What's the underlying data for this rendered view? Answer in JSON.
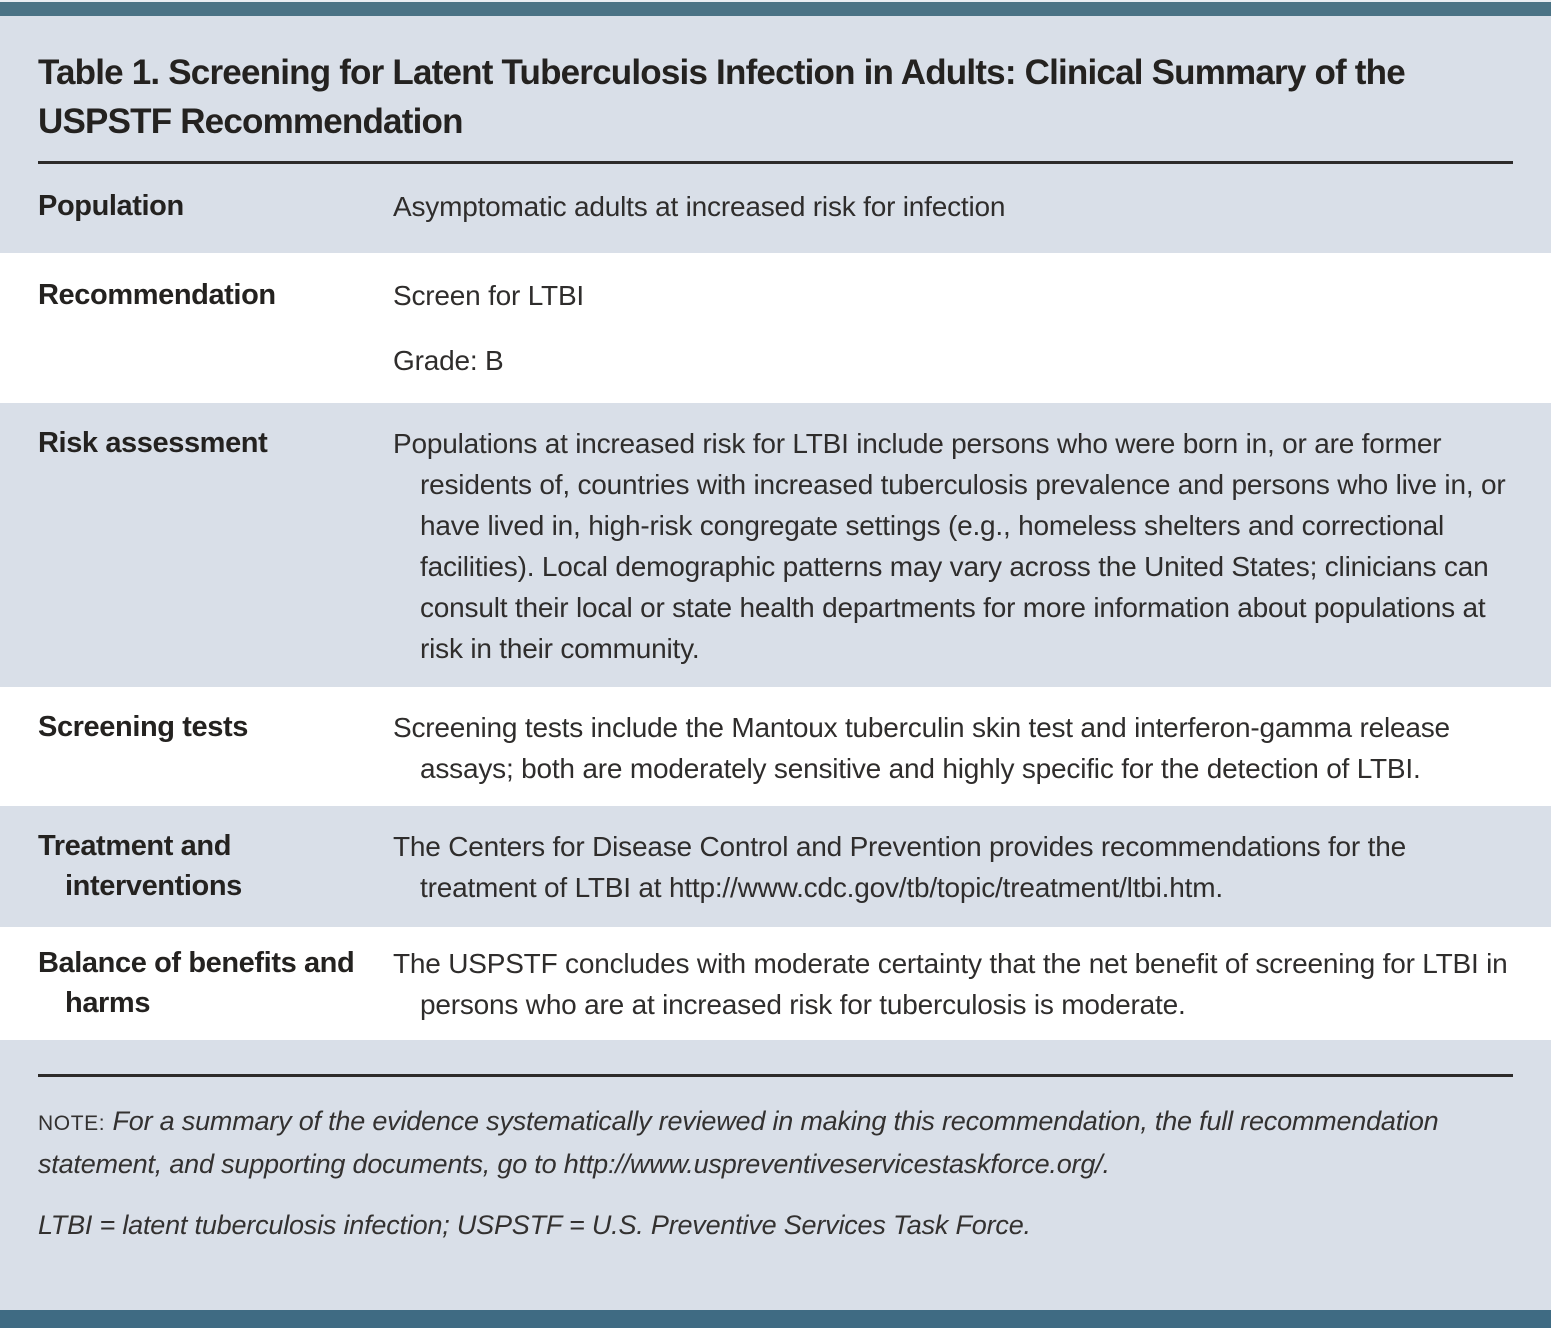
{
  "title": "Table 1. Screening for Latent Tuberculosis Infection in Adults: Clinical Summary of the USPSTF Recommendation",
  "rows": [
    {
      "label": "Population",
      "paragraphs": [
        "Asymptomatic adults at increased risk for infection"
      ]
    },
    {
      "label": "Recommendation",
      "paragraphs": [
        "Screen for LTBI",
        "Grade: B"
      ]
    },
    {
      "label": "Risk assessment",
      "paragraphs": [
        "Populations at increased risk for LTBI include persons who were born in, or are former residents of, countries with increased tuberculosis prevalence and persons who live in, or have lived in, high-risk congregate settings (e.g., homeless shelters and correctional facilities). Local demographic patterns may vary across the United States; clinicians can consult their local or state health departments for more information about populations at risk in their community."
      ]
    },
    {
      "label": "Screening tests",
      "paragraphs": [
        "Screening tests include the Mantoux tuberculin skin test and interferon-gamma release assays; both are moderately sensitive and highly specific for the detection of LTBI."
      ]
    },
    {
      "label": "Treatment and interventions",
      "paragraphs": [
        "The Centers for Disease Control and Prevention provides recommendations for the treatment of LTBI at http://www.cdc.gov/tb/topic/treatment/ltbi.htm."
      ]
    },
    {
      "label": "Balance of benefits and harms",
      "paragraphs": [
        "The USPSTF concludes with moderate certainty that the net benefit of screening for LTBI in persons who are at increased risk for tuberculosis is moderate."
      ]
    }
  ],
  "footer": {
    "note_label": "NOTE:",
    "note_text": "For a summary of the evidence systematically reviewed in making this recommendation, the full recommendation statement, and supporting documents, go to http://www.uspreventiveservicestaskforce.org/.",
    "abbreviations": "LTBI = latent tuberculosis infection; USPSTF = U.S. Preventive Services Task Force."
  },
  "colors": {
    "accent_bar_top": "#4b7385",
    "accent_bar_bottom": "#3f6b83",
    "shaded_row_background": "#d9dfe8",
    "white_row_background": "#ffffff",
    "title_text": "#242220",
    "body_text": "#2f2d2c",
    "rule_line": "#2d2b2a"
  }
}
